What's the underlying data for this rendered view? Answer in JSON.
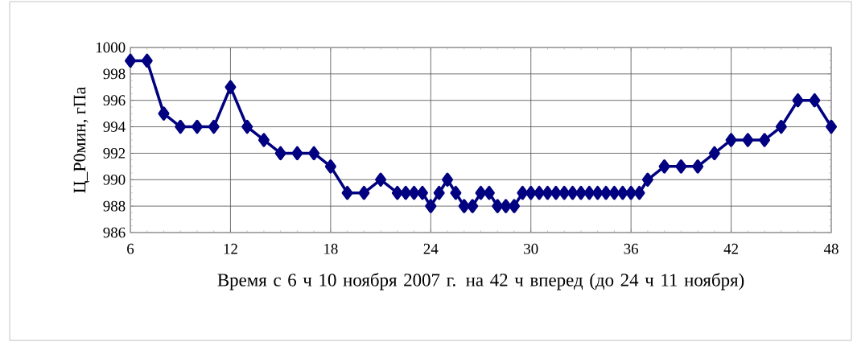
{
  "chart_data": {
    "type": "line",
    "xlabel": "Время с 6 ч 10 ноября 2007 г. на 42 ч вперед (до 24 ч 11 ноября)",
    "ylabel": "Ц_P0мин, гПа",
    "x": [
      6,
      7,
      8,
      9,
      10,
      11,
      12,
      13,
      14,
      15,
      16,
      17,
      18,
      19,
      20,
      21,
      22,
      22.5,
      23,
      23.5,
      24,
      24.5,
      25,
      25.5,
      26,
      26.5,
      27,
      27.5,
      28,
      28.5,
      29,
      29.5,
      30,
      30.5,
      31,
      31.5,
      32,
      32.5,
      33,
      33.5,
      34,
      34.5,
      35,
      35.5,
      36,
      36.5,
      37,
      38,
      39,
      40,
      41,
      42,
      43,
      44,
      45,
      46,
      47,
      48
    ],
    "series": [
      {
        "color": "#000080",
        "values": [
          999,
          999,
          995,
          994,
          994,
          994,
          997,
          994,
          993,
          992,
          992,
          992,
          991,
          989,
          989,
          990,
          989,
          989,
          989,
          989,
          988,
          989,
          990,
          989,
          988,
          988,
          989,
          989,
          988,
          988,
          988,
          989,
          989,
          989,
          989,
          989,
          989,
          989,
          989,
          989,
          989,
          989,
          989,
          989,
          989,
          989,
          990,
          991,
          991,
          991,
          992,
          993,
          993,
          993,
          994,
          996,
          996,
          994
        ]
      }
    ],
    "xlim": [
      6,
      48
    ],
    "ylim": [
      986,
      1000
    ],
    "xticks": [
      6,
      12,
      18,
      24,
      30,
      36,
      42,
      48
    ],
    "yticks": [
      986,
      988,
      990,
      992,
      994,
      996,
      998,
      1000
    ],
    "grid": true,
    "marker": "diamond",
    "line_style": "solid"
  }
}
